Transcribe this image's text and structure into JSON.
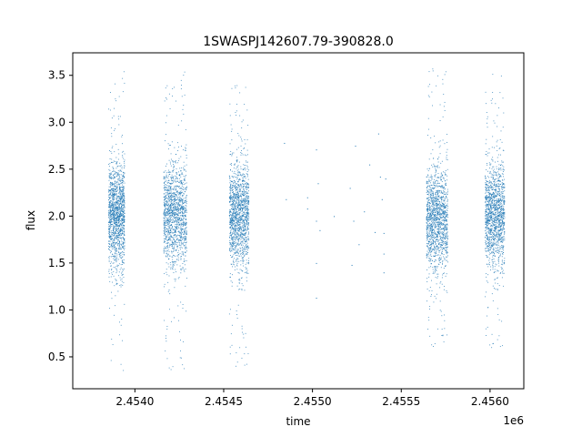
{
  "chart_data": {
    "type": "scatter",
    "title": "1SWASPJ142607.79-390828.0",
    "xlabel": "time",
    "ylabel": "flux",
    "x_offset_label": "1e6",
    "xlim": [
      2.45365,
      2.45619
    ],
    "ylim": [
      0.16,
      3.74
    ],
    "x_ticks": [
      {
        "value": 2.454,
        "label": "2.4540"
      },
      {
        "value": 2.4545,
        "label": "2.4545"
      },
      {
        "value": 2.455,
        "label": "2.4550"
      },
      {
        "value": 2.4555,
        "label": "2.4555"
      },
      {
        "value": 2.456,
        "label": "2.4560"
      }
    ],
    "y_ticks": [
      {
        "value": 0.5,
        "label": "0.5"
      },
      {
        "value": 1.0,
        "label": "1.0"
      },
      {
        "value": 1.5,
        "label": "1.5"
      },
      {
        "value": 2.0,
        "label": "2.0"
      },
      {
        "value": 2.5,
        "label": "2.5"
      },
      {
        "value": 3.0,
        "label": "3.0"
      },
      {
        "value": 3.5,
        "label": "3.5"
      }
    ],
    "series": [
      {
        "color": "#1f77b4",
        "clusters": [
          {
            "x_start": 2.45385,
            "x_end": 2.45394,
            "y_center": 2.0,
            "y_min": 0.35,
            "y_max": 3.55,
            "density": "high"
          },
          {
            "x_start": 2.45416,
            "x_end": 2.45429,
            "y_center": 2.0,
            "y_min": 0.33,
            "y_max": 3.58,
            "density": "high"
          },
          {
            "x_start": 2.45453,
            "x_end": 2.45464,
            "y_center": 2.0,
            "y_min": 0.38,
            "y_max": 3.4,
            "density": "high"
          },
          {
            "x_start": 2.45564,
            "x_end": 2.45576,
            "y_center": 1.95,
            "y_min": 0.58,
            "y_max": 3.58,
            "density": "high"
          },
          {
            "x_start": 2.45597,
            "x_end": 2.45608,
            "y_center": 2.0,
            "y_min": 0.58,
            "y_max": 3.52,
            "density": "high"
          }
        ],
        "sparse_points": [
          [
            2.45484,
            2.78
          ],
          [
            2.45485,
            2.18
          ],
          [
            2.45497,
            2.08
          ],
          [
            2.45497,
            2.2
          ],
          [
            2.45502,
            2.71
          ],
          [
            2.45502,
            1.95
          ],
          [
            2.45502,
            1.5
          ],
          [
            2.45502,
            1.13
          ],
          [
            2.45503,
            2.35
          ],
          [
            2.45504,
            1.85
          ],
          [
            2.45512,
            2.0
          ],
          [
            2.45521,
            2.3
          ],
          [
            2.45522,
            1.48
          ],
          [
            2.45523,
            1.95
          ],
          [
            2.45524,
            2.75
          ],
          [
            2.45526,
            1.7
          ],
          [
            2.45529,
            2.05
          ],
          [
            2.45535,
            1.83
          ],
          [
            2.45537,
            2.88
          ],
          [
            2.45538,
            2.42
          ],
          [
            2.45539,
            2.18
          ],
          [
            2.4554,
            1.6
          ],
          [
            2.4554,
            1.82
          ],
          [
            2.4554,
            1.4
          ],
          [
            2.45532,
            2.55
          ],
          [
            2.45541,
            2.4
          ]
        ]
      }
    ]
  }
}
